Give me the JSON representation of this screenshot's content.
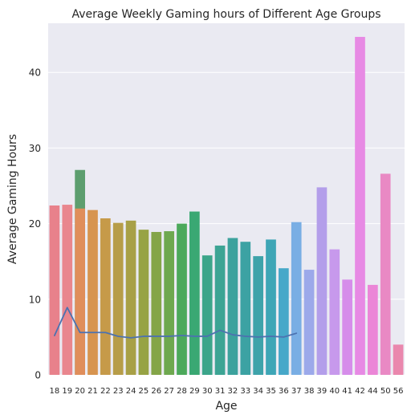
{
  "chart_data": {
    "type": "bar",
    "title": "Average Weekly Gaming hours of Different Age Groups",
    "xlabel": "Age",
    "ylabel": "Average Gaming Hours",
    "ylim": [
      0,
      46.5
    ],
    "yticks": [
      0,
      10,
      20,
      30,
      40
    ],
    "grid": true,
    "categories": [
      "18",
      "19",
      "20",
      "21",
      "22",
      "23",
      "24",
      "25",
      "26",
      "27",
      "28",
      "29",
      "30",
      "31",
      "32",
      "33",
      "34",
      "35",
      "36",
      "37",
      "38",
      "39",
      "40",
      "41",
      "42",
      "44",
      "50",
      "56"
    ],
    "values": [
      22.4,
      22.5,
      22.0,
      21.8,
      20.7,
      20.1,
      20.4,
      19.2,
      18.9,
      19.0,
      20.0,
      21.6,
      15.8,
      17.1,
      18.1,
      17.6,
      15.7,
      17.9,
      14.1,
      20.2,
      13.9,
      24.8,
      16.6,
      12.6,
      44.7,
      11.9,
      26.6,
      4.0
    ],
    "bar_colors": [
      "#e8818b",
      "#e9868e",
      "#e08e5b",
      "#d7944f",
      "#c69a49",
      "#b79d48",
      "#a8a046",
      "#97a344",
      "#84a548",
      "#6ea84f",
      "#4ca95b",
      "#3aa873",
      "#3ca58a",
      "#3ca494",
      "#3ca29d",
      "#3ca2a3",
      "#3ea3aa",
      "#3ea6b6",
      "#47a8c9",
      "#79aee4",
      "#9ca9ea",
      "#b39eea",
      "#c799ec",
      "#d68dea",
      "#e78ae4",
      "#eb86d7",
      "#e989c4",
      "#ea87ad"
    ],
    "overlay": {
      "type": "line",
      "color": "#4c72b0",
      "values": [
        5.2,
        8.9,
        5.6,
        5.6,
        5.6,
        5.1,
        4.9,
        5.1,
        5.1,
        5.1,
        5.2,
        5.1,
        5.1,
        5.9,
        5.3,
        5.1,
        5.0,
        5.1,
        5.0,
        5.5
      ]
    },
    "secondary_bar": {
      "category": "20",
      "value": 27.1,
      "color": "#5d9e6f"
    },
    "background_color": "#eaeaf2",
    "grid_color": "#ffffff"
  }
}
